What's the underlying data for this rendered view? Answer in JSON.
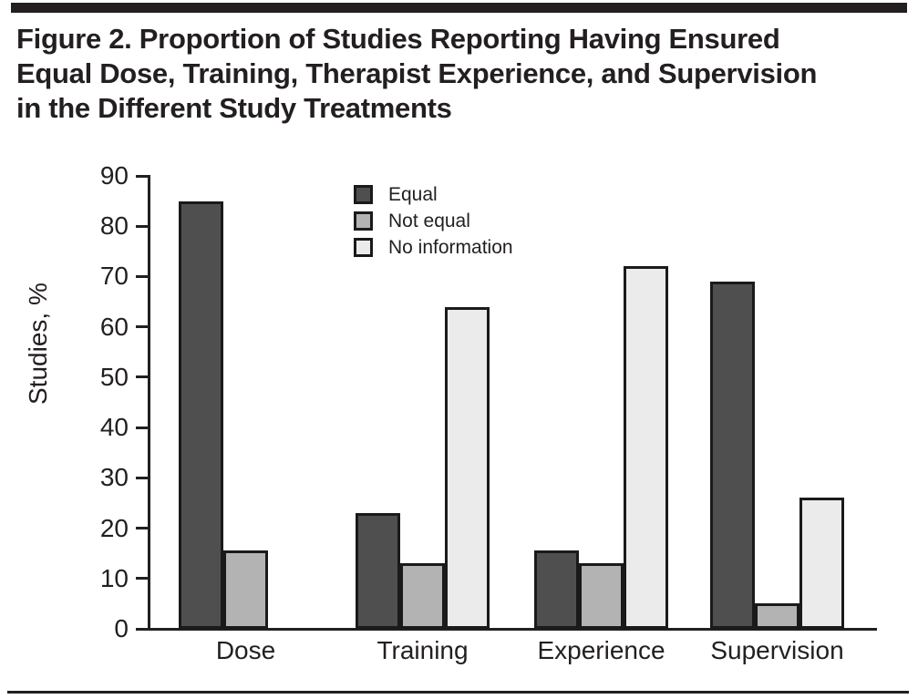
{
  "figure": {
    "title_lines": [
      "Figure 2. Proportion of Studies Reporting Having Ensured",
      "Equal Dose, Training, Therapist Experience, and Supervision",
      "in the Different Study Treatments"
    ]
  },
  "chart_data": {
    "type": "bar",
    "title": "Figure 2. Proportion of Studies Reporting Having Ensured Equal Dose, Training, Therapist Experience, and Supervision in the Different Study Treatments",
    "categories": [
      "Dose",
      "Training",
      "Experience",
      "Supervision"
    ],
    "series": [
      {
        "name": "Equal",
        "color": "#4f4f4f",
        "values": [
          85,
          23,
          15.5,
          69
        ]
      },
      {
        "name": "Not equal",
        "color": "#b3b3b3",
        "values": [
          15.5,
          13,
          13,
          5
        ]
      },
      {
        "name": "No information",
        "color": "#ebebeb",
        "values": [
          0,
          64,
          72,
          26
        ]
      }
    ],
    "xlabel": "",
    "ylabel": "Studies, %",
    "ylim": [
      0,
      90
    ],
    "yticks": [
      0,
      10,
      20,
      30,
      40,
      50,
      60,
      70,
      80,
      90
    ],
    "grid": false,
    "legend_position": "upper-left-inside",
    "colors": {
      "axis": "#231f20",
      "bar_border": "#1a1a1a",
      "text": "#231f20"
    }
  }
}
